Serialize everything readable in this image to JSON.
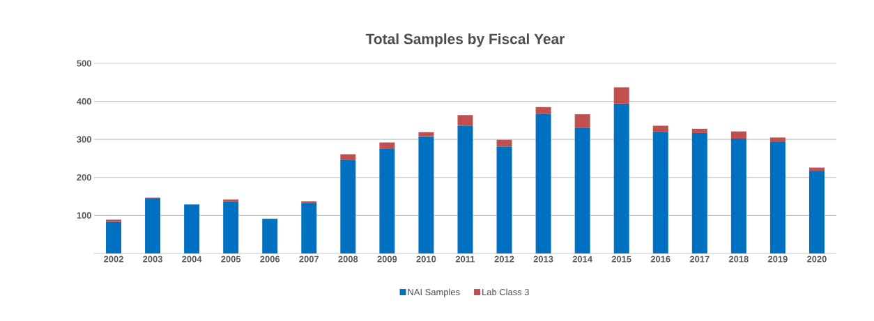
{
  "chart_data": {
    "type": "bar",
    "title": "Total Samples by Fiscal Year",
    "stacked": true,
    "categories": [
      "2002",
      "2003",
      "2004",
      "2005",
      "2006",
      "2007",
      "2008",
      "2009",
      "2010",
      "2011",
      "2012",
      "2013",
      "2014",
      "2015",
      "2016",
      "2017",
      "2018",
      "2019",
      "2020"
    ],
    "series": [
      {
        "name": "NAI Samples",
        "color": "#0070c0",
        "values": [
          83,
          145,
          129,
          137,
          91,
          132,
          247,
          276,
          307,
          336,
          281,
          367,
          330,
          394,
          320,
          317,
          302,
          293,
          216
        ]
      },
      {
        "name": "Lab Class 3",
        "color": "#c0504d",
        "values": [
          6,
          2,
          null,
          5,
          null,
          5,
          14,
          16,
          12,
          28,
          18,
          18,
          36,
          43,
          16,
          11,
          19,
          12,
          10
        ]
      }
    ],
    "ylim": [
      0,
      500
    ],
    "yticks": [
      {
        "value": 0,
        "label": null
      },
      100,
      200,
      300,
      400,
      500
    ],
    "grid": "y",
    "legend": "bottom"
  }
}
